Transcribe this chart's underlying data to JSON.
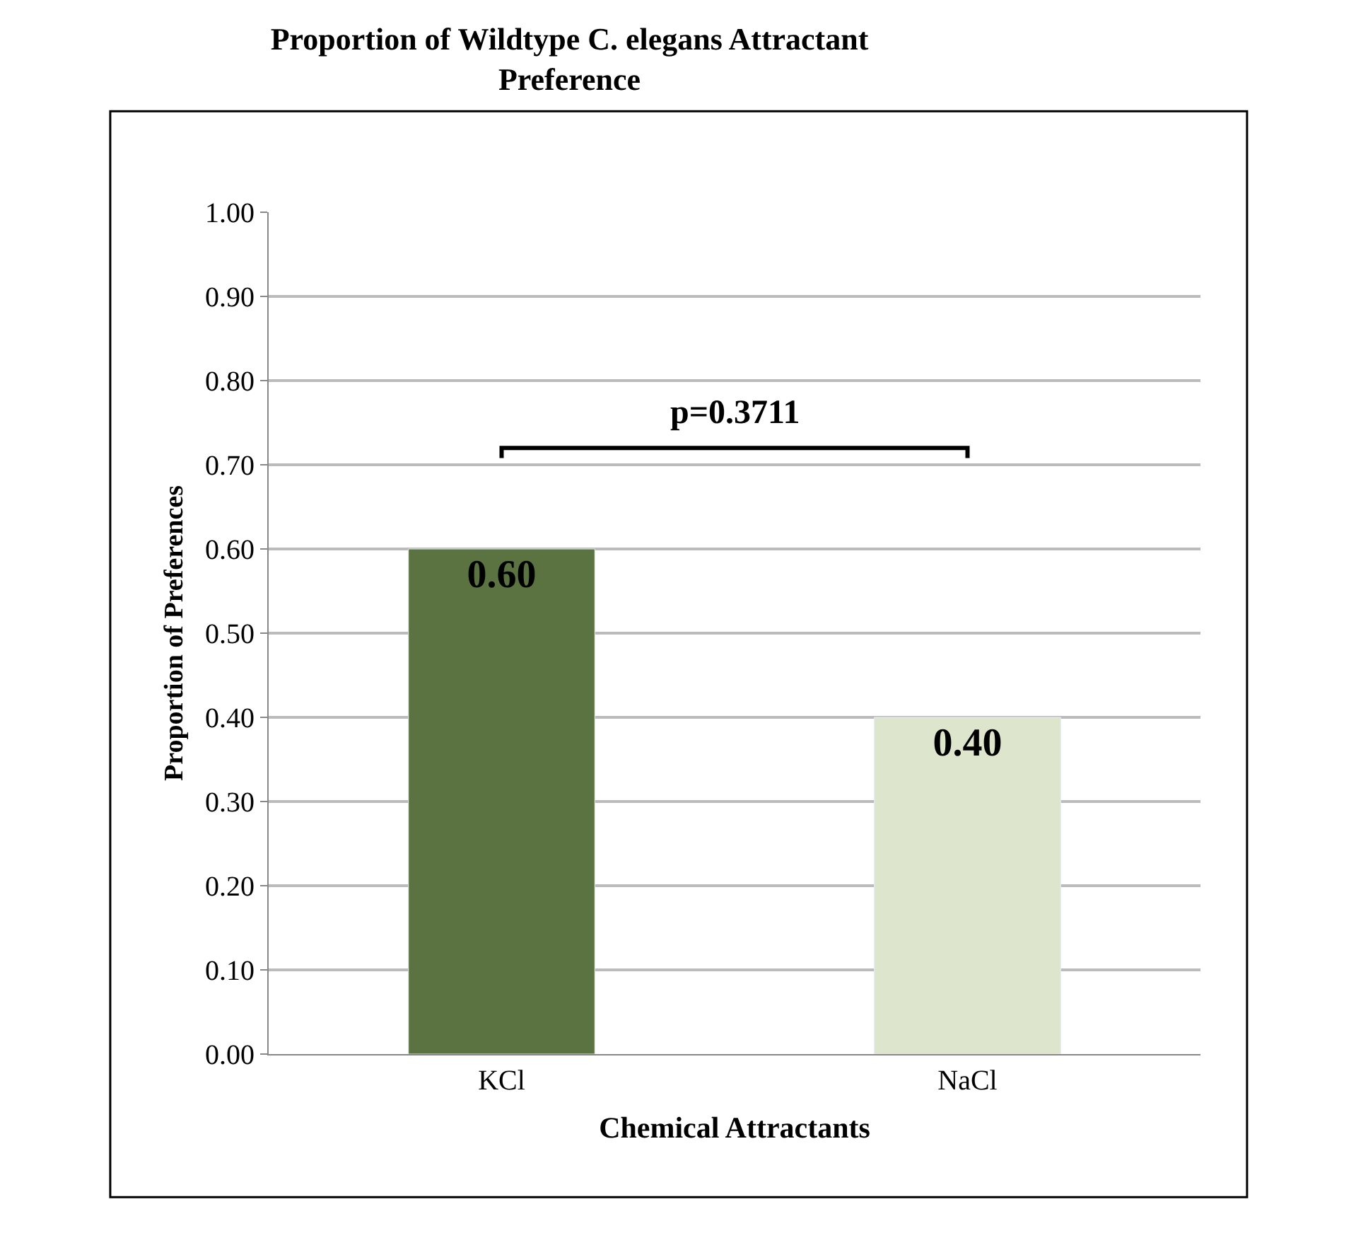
{
  "chart_data": {
    "type": "bar",
    "title": "Proportion of Wildtype C. elegans Attractant Preference",
    "xlabel": "Chemical Attractants",
    "ylabel": "Proportion of Preferences",
    "categories": [
      "KCl",
      "NaCl"
    ],
    "values": [
      0.6,
      0.4
    ],
    "colors": [
      "#5a7340",
      "#dde6cd"
    ],
    "value_labels": [
      "0.60",
      "0.40"
    ],
    "annotations": [
      "p=0.3711"
    ],
    "ylim": [
      0,
      1
    ],
    "yticks": [
      {
        "value": 0,
        "label": "0.00"
      },
      {
        "value": 0.1,
        "label": "0.10"
      },
      {
        "value": 0.2,
        "label": "0.20"
      },
      {
        "value": 0.3,
        "label": "0.30"
      },
      {
        "value": 0.4,
        "label": "0.40"
      },
      {
        "value": 0.5,
        "label": "0.50"
      },
      {
        "value": 0.6,
        "label": "0.60"
      },
      {
        "value": 0.7,
        "label": "0.70"
      },
      {
        "value": 0.8,
        "label": "0.80"
      },
      {
        "value": 0.9,
        "label": "0.90"
      },
      {
        "value": 1,
        "label": "1.00"
      }
    ],
    "grid": "y"
  }
}
